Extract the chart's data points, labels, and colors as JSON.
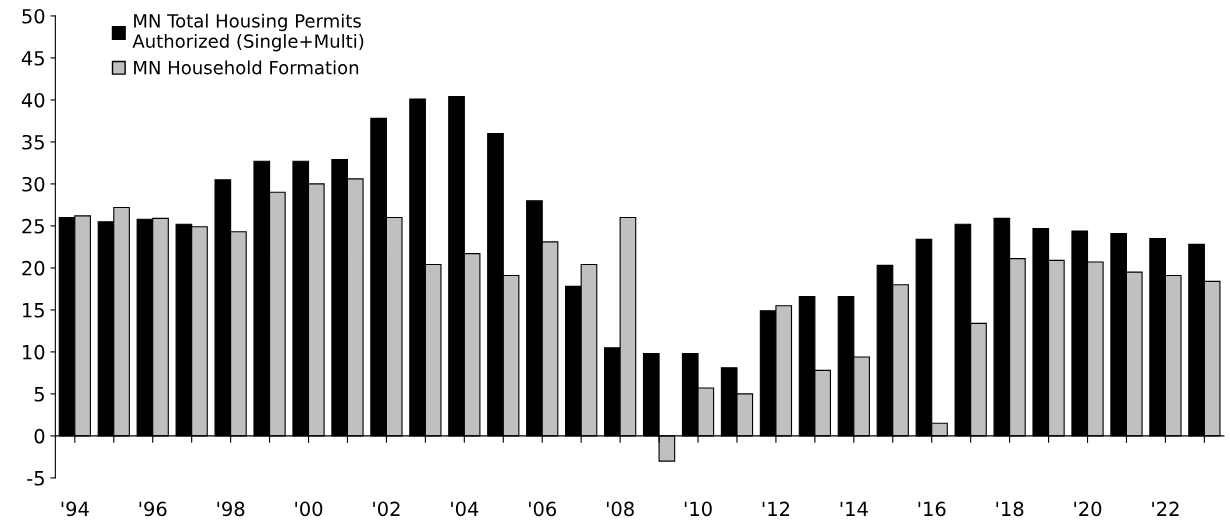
{
  "chart_data": {
    "type": "bar",
    "categories": [
      "'94",
      null,
      "'96",
      null,
      "'98",
      null,
      "'00",
      null,
      "'02",
      null,
      "'04",
      null,
      "'06",
      null,
      "'08",
      null,
      "'10",
      null,
      "'12",
      null,
      "'14",
      null,
      "'16",
      null,
      "'18",
      null,
      "'20",
      null,
      "'22",
      null
    ],
    "series": [
      {
        "name": "MN Total Housing Permits\nAuthorized (Single+Multi)",
        "color": "#000000",
        "values": [
          26.0,
          25.5,
          25.8,
          25.2,
          30.5,
          32.7,
          32.7,
          32.9,
          37.8,
          40.1,
          40.4,
          36.0,
          28.0,
          17.8,
          10.5,
          9.8,
          9.8,
          8.1,
          14.9,
          16.6,
          16.6,
          20.3,
          23.4,
          25.2,
          25.9,
          24.7,
          24.4,
          24.1,
          23.5,
          22.8
        ]
      },
      {
        "name": "MN Household Formation",
        "color": "#c0c0c0",
        "values": [
          26.2,
          27.2,
          25.9,
          24.9,
          24.3,
          29.0,
          30.0,
          30.6,
          26.0,
          20.4,
          21.7,
          19.1,
          23.1,
          20.4,
          26.0,
          -3.0,
          5.7,
          5.0,
          15.5,
          7.8,
          9.4,
          18.0,
          1.5,
          13.4,
          21.1,
          20.9,
          20.7,
          19.5,
          19.1,
          18.4
        ]
      }
    ],
    "ylim": [
      -5,
      50
    ],
    "yticks": [
      -5,
      0,
      5,
      10,
      15,
      20,
      25,
      30,
      35,
      40,
      45,
      50
    ],
    "legend": "top left"
  }
}
